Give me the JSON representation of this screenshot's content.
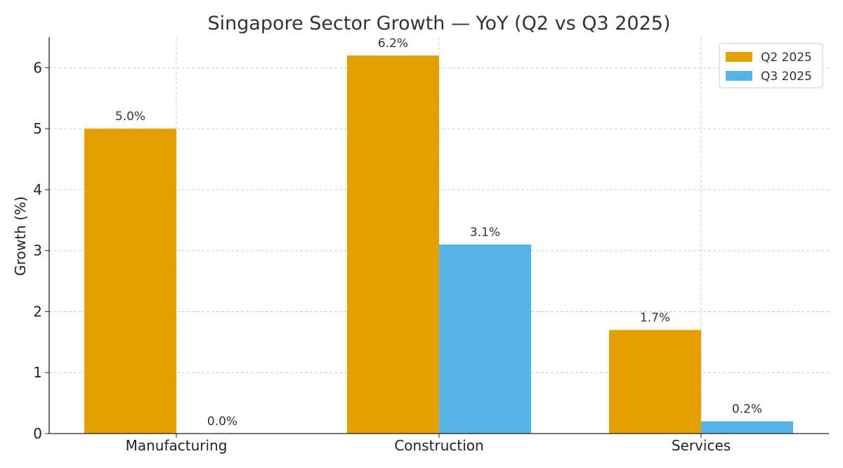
{
  "chart_data": {
    "type": "bar",
    "title": "Singapore Sector Growth — YoY (Q2 vs Q3 2025)",
    "xlabel": "",
    "ylabel": "Growth (%)",
    "categories": [
      "Manufacturing",
      "Construction",
      "Services"
    ],
    "series": [
      {
        "name": "Q2 2025",
        "values": [
          5.0,
          6.2,
          1.7
        ],
        "labels": [
          "5.0%",
          "6.2%",
          "1.7%"
        ],
        "color": "#E69F00"
      },
      {
        "name": "Q3 2025",
        "values": [
          0.0,
          3.1,
          0.2
        ],
        "labels": [
          "0.0%",
          "3.1%",
          "0.2%"
        ],
        "color": "#56B4E9"
      }
    ],
    "ylim": [
      0,
      6.5
    ],
    "yticks": [
      "0",
      "1",
      "2",
      "3",
      "4",
      "5",
      "6"
    ],
    "grid": true,
    "legend_position": "top-right"
  }
}
